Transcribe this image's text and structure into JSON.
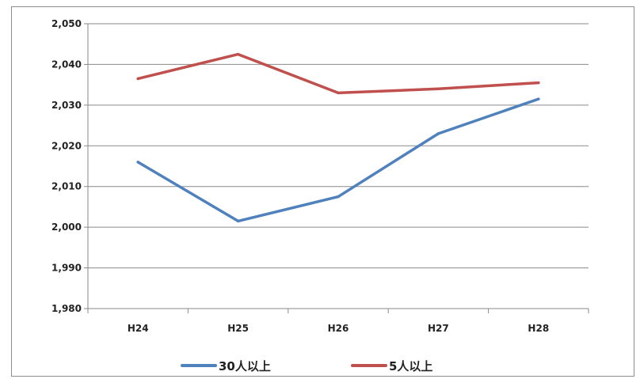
{
  "chart_data": {
    "type": "line",
    "title": "",
    "xlabel": "",
    "ylabel": "",
    "categories": [
      "H24",
      "H25",
      "H26",
      "H27",
      "H28"
    ],
    "ylim": [
      1980,
      2050
    ],
    "yticks": [
      1980,
      1990,
      2000,
      2010,
      2020,
      2030,
      2040,
      2050
    ],
    "ytick_labels": [
      "1,980",
      "1,990",
      "2,000",
      "2,010",
      "2,020",
      "2,030",
      "2,040",
      "2,050"
    ],
    "grid": true,
    "legend_position": "bottom",
    "series": [
      {
        "name": "30人以上",
        "color": "#4f81bd",
        "values": [
          2016,
          2001.5,
          2007.5,
          2023,
          2031.5
        ]
      },
      {
        "name": "5人以上",
        "color": "#c0504d",
        "values": [
          2036.5,
          2042.5,
          2033,
          2034,
          2035.5
        ]
      }
    ]
  }
}
